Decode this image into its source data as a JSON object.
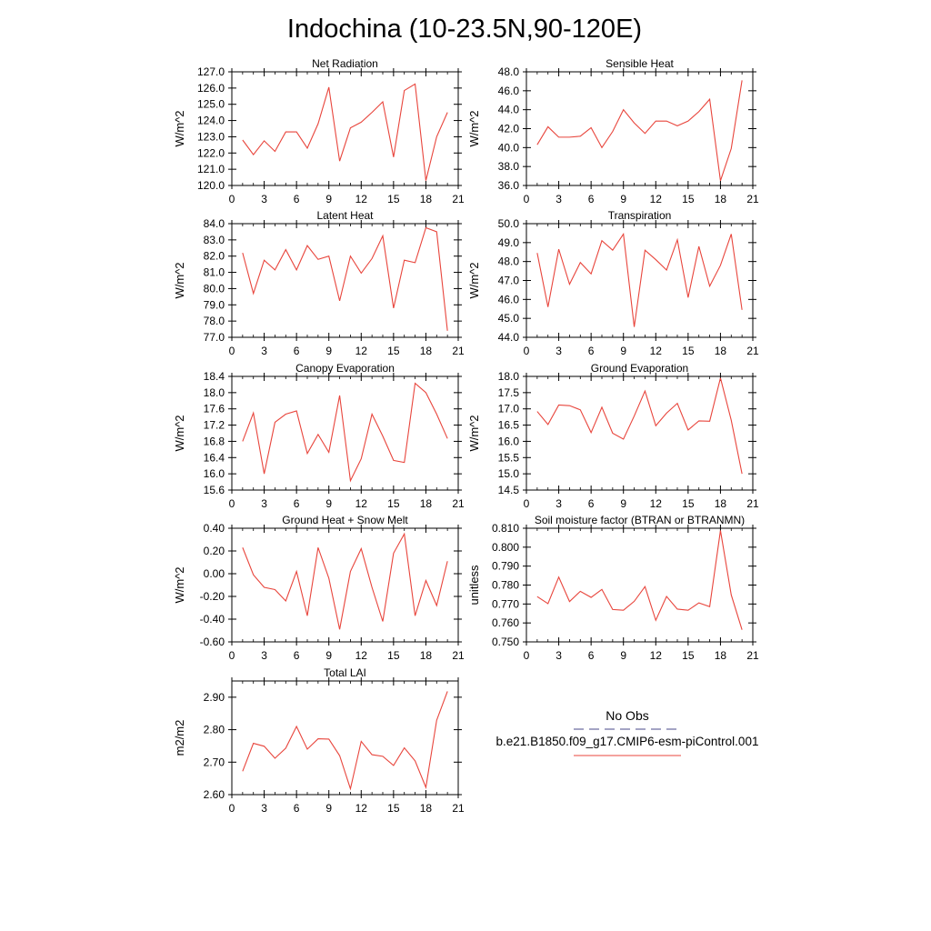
{
  "figure": {
    "title": "Indochina (10-23.5N,90-120E)",
    "legend": {
      "obs_label": "No Obs",
      "model_label": "b.e21.B1850.f09_g17.CMIP6-esm-piControl.001",
      "model_color": "#e8453c",
      "obs_color": "#4a4a8a"
    }
  },
  "chart_data": [
    {
      "type": "line",
      "title": "Net Radiation",
      "ylabel": "W/m^2",
      "xlim": [
        0,
        21
      ],
      "xticks": [
        0,
        3,
        6,
        9,
        12,
        15,
        18,
        21
      ],
      "ylim": [
        120.0,
        127.0
      ],
      "yticks": [
        120.0,
        121.0,
        122.0,
        123.0,
        124.0,
        125.0,
        126.0,
        127.0
      ],
      "ytick_labels": [
        "120.0",
        "121.0",
        "122.0",
        "123.0",
        "124.0",
        "125.0",
        "126.0",
        "127.0"
      ],
      "x": [
        1,
        2,
        3,
        4,
        5,
        6,
        7,
        8,
        9,
        10,
        11,
        12,
        13,
        14,
        15,
        16,
        17,
        18,
        19,
        20
      ],
      "y": [
        122.8,
        121.9,
        122.75,
        122.1,
        123.3,
        123.3,
        122.3,
        123.8,
        126.05,
        121.5,
        123.55,
        123.9,
        124.5,
        125.15,
        121.75,
        125.85,
        126.25,
        120.3,
        123.0,
        124.5
      ],
      "series_color": "#e8453c"
    },
    {
      "type": "line",
      "title": "Sensible Heat",
      "ylabel": "W/m^2",
      "xlim": [
        0,
        21
      ],
      "xticks": [
        0,
        3,
        6,
        9,
        12,
        15,
        18,
        21
      ],
      "ylim": [
        36.0,
        48.0
      ],
      "yticks": [
        36.0,
        38.0,
        40.0,
        42.0,
        44.0,
        46.0,
        48.0
      ],
      "ytick_labels": [
        "36.0",
        "38.0",
        "40.0",
        "42.0",
        "44.0",
        "46.0",
        "48.0"
      ],
      "x": [
        1,
        2,
        3,
        4,
        5,
        6,
        7,
        8,
        9,
        10,
        11,
        12,
        13,
        14,
        15,
        16,
        17,
        18,
        19,
        20
      ],
      "y": [
        40.3,
        42.2,
        41.1,
        41.1,
        41.2,
        42.1,
        40.0,
        41.7,
        44.0,
        42.6,
        41.5,
        42.8,
        42.8,
        42.3,
        42.8,
        43.8,
        45.1,
        36.5,
        39.9,
        47.1
      ],
      "series_color": "#e8453c"
    },
    {
      "type": "line",
      "title": "Latent Heat",
      "ylabel": "W/m^2",
      "xlim": [
        0,
        21
      ],
      "xticks": [
        0,
        3,
        6,
        9,
        12,
        15,
        18,
        21
      ],
      "ylim": [
        77.0,
        84.0
      ],
      "yticks": [
        77.0,
        78.0,
        79.0,
        80.0,
        81.0,
        82.0,
        83.0,
        84.0
      ],
      "ytick_labels": [
        "77.0",
        "78.0",
        "79.0",
        "80.0",
        "81.0",
        "82.0",
        "83.0",
        "84.0"
      ],
      "x": [
        1,
        2,
        3,
        4,
        5,
        6,
        7,
        8,
        9,
        10,
        11,
        12,
        13,
        14,
        15,
        16,
        17,
        18,
        19,
        20
      ],
      "y": [
        82.2,
        79.7,
        81.75,
        81.15,
        82.4,
        81.15,
        82.65,
        81.8,
        82.0,
        79.25,
        82.0,
        80.95,
        81.85,
        83.25,
        78.8,
        81.75,
        81.6,
        83.75,
        83.5,
        77.4
      ],
      "series_color": "#e8453c"
    },
    {
      "type": "line",
      "title": "Transpiration",
      "ylabel": "W/m^2",
      "xlim": [
        0,
        21
      ],
      "xticks": [
        0,
        3,
        6,
        9,
        12,
        15,
        18,
        21
      ],
      "ylim": [
        44.0,
        50.0
      ],
      "yticks": [
        44.0,
        45.0,
        46.0,
        47.0,
        48.0,
        49.0,
        50.0
      ],
      "ytick_labels": [
        "44.0",
        "45.0",
        "46.0",
        "47.0",
        "48.0",
        "49.0",
        "50.0"
      ],
      "x": [
        1,
        2,
        3,
        4,
        5,
        6,
        7,
        8,
        9,
        10,
        11,
        12,
        13,
        14,
        15,
        16,
        17,
        18,
        19,
        20
      ],
      "y": [
        48.45,
        45.6,
        48.65,
        46.8,
        47.95,
        47.35,
        49.1,
        48.6,
        49.45,
        44.55,
        48.6,
        48.1,
        47.55,
        49.15,
        46.1,
        48.8,
        46.7,
        47.8,
        49.45,
        45.45
      ],
      "series_color": "#e8453c"
    },
    {
      "type": "line",
      "title": "Canopy Evaporation",
      "ylabel": "W/m^2",
      "xlim": [
        0,
        21
      ],
      "xticks": [
        0,
        3,
        6,
        9,
        12,
        15,
        18,
        21
      ],
      "ylim": [
        15.6,
        18.4
      ],
      "yticks": [
        15.6,
        16.0,
        16.4,
        16.8,
        17.2,
        17.6,
        18.0,
        18.4
      ],
      "ytick_labels": [
        "15.6",
        "16.0",
        "16.4",
        "16.8",
        "17.2",
        "17.6",
        "18.0",
        "18.4"
      ],
      "x": [
        1,
        2,
        3,
        4,
        5,
        6,
        7,
        8,
        9,
        10,
        11,
        12,
        13,
        14,
        15,
        16,
        17,
        18,
        19,
        20
      ],
      "y": [
        16.8,
        17.5,
        16.0,
        17.27,
        17.47,
        17.55,
        16.5,
        16.97,
        16.53,
        17.93,
        15.83,
        16.37,
        17.47,
        16.93,
        16.33,
        16.28,
        18.23,
        18.0,
        17.47,
        16.87
      ],
      "series_color": "#e8453c"
    },
    {
      "type": "line",
      "title": "Ground Evaporation",
      "ylabel": "W/m^2",
      "xlim": [
        0,
        21
      ],
      "xticks": [
        0,
        3,
        6,
        9,
        12,
        15,
        18,
        21
      ],
      "ylim": [
        14.5,
        18.0
      ],
      "yticks": [
        14.5,
        15.0,
        15.5,
        16.0,
        16.5,
        17.0,
        17.5,
        18.0
      ],
      "ytick_labels": [
        "14.5",
        "15.0",
        "15.5",
        "16.0",
        "16.5",
        "17.0",
        "17.5",
        "18.0"
      ],
      "x": [
        1,
        2,
        3,
        4,
        5,
        6,
        7,
        8,
        9,
        10,
        11,
        12,
        13,
        14,
        15,
        16,
        17,
        18,
        19,
        20
      ],
      "y": [
        16.92,
        16.52,
        17.12,
        17.1,
        16.97,
        16.27,
        17.05,
        16.25,
        16.07,
        16.78,
        17.55,
        16.48,
        16.87,
        17.17,
        16.35,
        16.63,
        16.62,
        17.95,
        16.65,
        15.0
      ],
      "series_color": "#e8453c"
    },
    {
      "type": "line",
      "title": "Ground Heat + Snow Melt",
      "ylabel": "W/m^2",
      "xlim": [
        0,
        21
      ],
      "xticks": [
        0,
        3,
        6,
        9,
        12,
        15,
        18,
        21
      ],
      "ylim": [
        -0.6,
        0.4
      ],
      "yticks": [
        -0.6,
        -0.4,
        -0.2,
        0.0,
        0.2,
        0.4
      ],
      "ytick_labels": [
        "-0.60",
        "-0.40",
        "-0.20",
        "0.00",
        "0.20",
        "0.40"
      ],
      "x": [
        1,
        2,
        3,
        4,
        5,
        6,
        7,
        8,
        9,
        10,
        11,
        12,
        13,
        14,
        15,
        16,
        17,
        18,
        19,
        20
      ],
      "y": [
        0.23,
        -0.01,
        -0.12,
        -0.14,
        -0.24,
        0.02,
        -0.37,
        0.23,
        -0.04,
        -0.49,
        0.02,
        0.22,
        -0.12,
        -0.42,
        0.18,
        0.35,
        -0.37,
        -0.06,
        -0.28,
        0.11
      ],
      "series_color": "#e8453c"
    },
    {
      "type": "line",
      "title": "Soil moisture factor (BTRAN or BTRANMN)",
      "ylabel": "unitless",
      "xlim": [
        0,
        21
      ],
      "xticks": [
        0,
        3,
        6,
        9,
        12,
        15,
        18,
        21
      ],
      "ylim": [
        0.75,
        0.81
      ],
      "yticks": [
        0.75,
        0.76,
        0.77,
        0.78,
        0.79,
        0.8,
        0.81
      ],
      "ytick_labels": [
        "0.750",
        "0.760",
        "0.770",
        "0.780",
        "0.790",
        "0.800",
        "0.810"
      ],
      "x": [
        1,
        2,
        3,
        4,
        5,
        6,
        7,
        8,
        9,
        10,
        11,
        12,
        13,
        14,
        15,
        16,
        17,
        18,
        19,
        20
      ],
      "y": [
        0.7739,
        0.7702,
        0.7842,
        0.7713,
        0.7767,
        0.7735,
        0.7777,
        0.7671,
        0.7667,
        0.7714,
        0.7792,
        0.7614,
        0.774,
        0.7673,
        0.7667,
        0.7706,
        0.7686,
        0.8088,
        0.7748,
        0.7564
      ],
      "series_color": "#e8453c"
    },
    {
      "type": "line",
      "title": "Total LAI",
      "ylabel": "m2/m2",
      "xlim": [
        0,
        21
      ],
      "xticks": [
        0,
        3,
        6,
        9,
        12,
        15,
        18,
        21
      ],
      "ylim": [
        2.6,
        2.95
      ],
      "yticks": [
        2.6,
        2.7,
        2.8,
        2.9
      ],
      "ytick_labels": [
        "2.60",
        "2.70",
        "2.80",
        "2.90"
      ],
      "x": [
        1,
        2,
        3,
        4,
        5,
        6,
        7,
        8,
        9,
        10,
        11,
        12,
        13,
        14,
        15,
        16,
        17,
        18,
        19,
        20
      ],
      "y": [
        2.672,
        2.758,
        2.749,
        2.712,
        2.743,
        2.81,
        2.74,
        2.772,
        2.771,
        2.72,
        2.618,
        2.764,
        2.723,
        2.718,
        2.69,
        2.744,
        2.704,
        2.622,
        2.829,
        2.918
      ],
      "series_color": "#e8453c"
    }
  ]
}
